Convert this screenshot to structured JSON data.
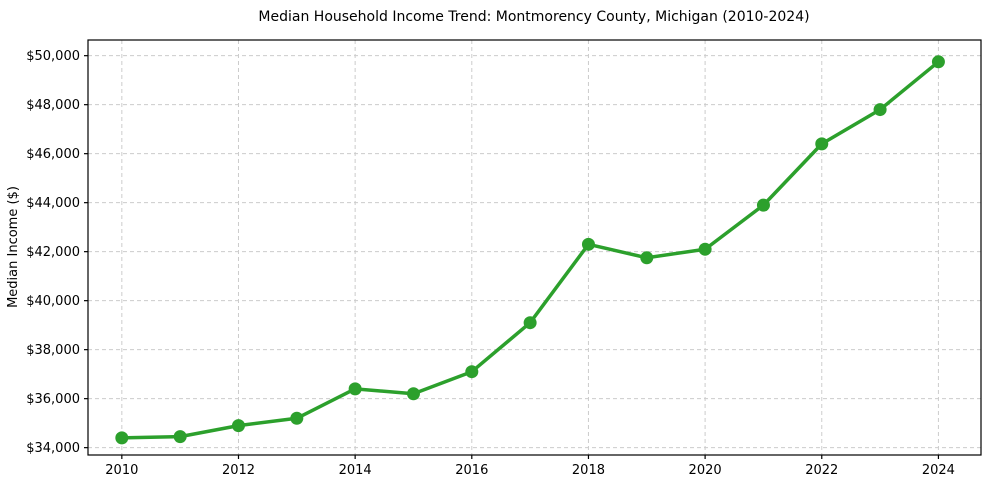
{
  "page": {
    "background": "#ffffff"
  },
  "chart_data": {
    "type": "line",
    "title": "Median Household Income Trend: Montmorency County, Michigan (2010-2024)",
    "xlabel": "",
    "ylabel": "Median Income ($)",
    "series": [
      {
        "name": "Median household income",
        "x": [
          2010,
          2011,
          2012,
          2013,
          2014,
          2015,
          2016,
          2017,
          2018,
          2019,
          2020,
          2021,
          2022,
          2023,
          2024
        ],
        "values": [
          34400,
          34450,
          34900,
          35200,
          36400,
          36200,
          37100,
          39100,
          42300,
          41750,
          42100,
          43900,
          46400,
          47800,
          49750
        ],
        "color": "#2ca02c",
        "marker": "circle",
        "line_width": 3.5,
        "marker_radius": 6.5
      }
    ],
    "xlim": [
      2009.42,
      2024.73
    ],
    "ylim": [
      33700,
      50640
    ],
    "x_ticks": [
      2010,
      2012,
      2014,
      2016,
      2018,
      2020,
      2022,
      2024
    ],
    "x_tick_labels": [
      "2010",
      "2012",
      "2014",
      "2016",
      "2018",
      "2020",
      "2022",
      "2024"
    ],
    "y_ticks": [
      34000,
      36000,
      38000,
      40000,
      42000,
      44000,
      46000,
      48000,
      50000
    ],
    "y_tick_labels": [
      "$34,000",
      "$36,000",
      "$38,000",
      "$40,000",
      "$42,000",
      "$44,000",
      "$46,000",
      "$48,000",
      "$50,000"
    ],
    "grid": true,
    "grid_style": "dashed",
    "legend_position": "none",
    "colors": {
      "grid": "#cccccc",
      "spine": "#000000",
      "text": "#000000",
      "accent": "#2ca02c"
    }
  }
}
